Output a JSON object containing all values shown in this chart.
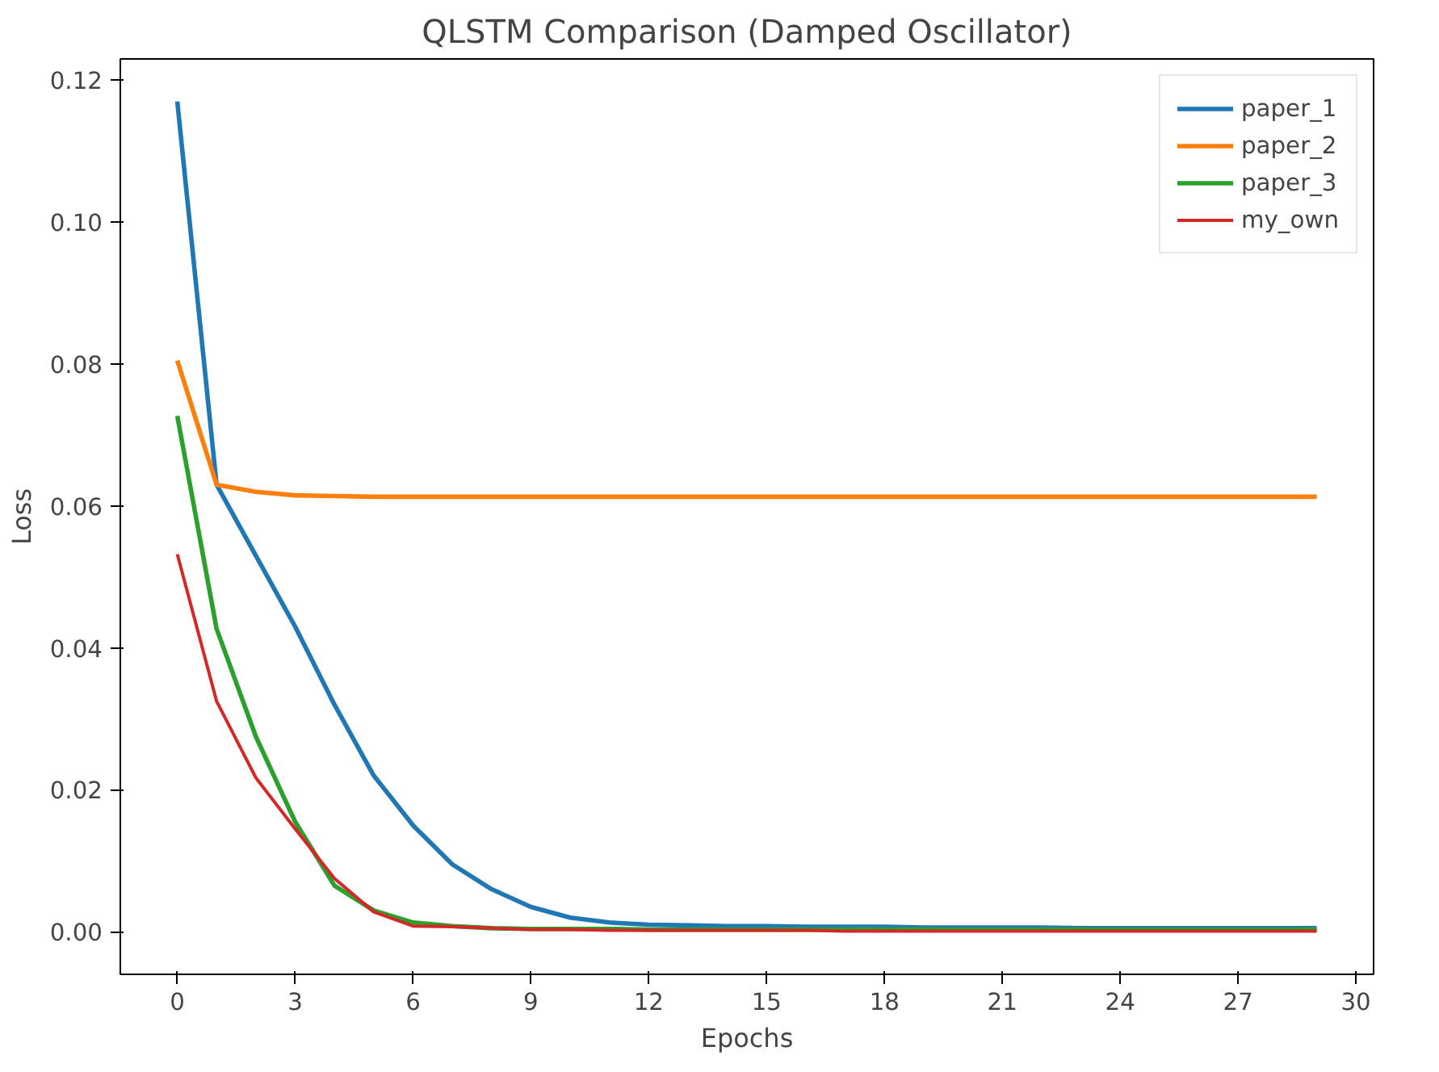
{
  "chart_data": {
    "type": "line",
    "title": "QLSTM Comparison (Damped Oscillator)",
    "xlabel": "Epochs",
    "ylabel": "Loss",
    "x": [
      0,
      1,
      2,
      3,
      4,
      5,
      6,
      7,
      8,
      9,
      10,
      11,
      12,
      13,
      14,
      15,
      16,
      17,
      18,
      19,
      20,
      21,
      22,
      23,
      24,
      25,
      26,
      27,
      28,
      29
    ],
    "series": [
      {
        "name": "paper_1",
        "color": "#1f77b4",
        "values": [
          0.117,
          0.063,
          0.053,
          0.043,
          0.032,
          0.022,
          0.015,
          0.0095,
          0.006,
          0.0035,
          0.002,
          0.0013,
          0.001,
          0.0009,
          0.0008,
          0.0008,
          0.0007,
          0.0007,
          0.0007,
          0.0006,
          0.0006,
          0.0006,
          0.0006,
          0.0005,
          0.0005,
          0.0005,
          0.0005,
          0.0005,
          0.0005,
          0.0005
        ]
      },
      {
        "name": "paper_2",
        "color": "#ff7f0e",
        "values": [
          0.0805,
          0.063,
          0.062,
          0.0615,
          0.0614,
          0.0613,
          0.0613,
          0.0613,
          0.0613,
          0.0613,
          0.0613,
          0.0613,
          0.0613,
          0.0613,
          0.0613,
          0.0613,
          0.0613,
          0.0613,
          0.0613,
          0.0613,
          0.0613,
          0.0613,
          0.0613,
          0.0613,
          0.0613,
          0.0613,
          0.0613,
          0.0613,
          0.0613,
          0.0613
        ]
      },
      {
        "name": "paper_3",
        "color": "#2ca02c",
        "values": [
          0.0727,
          0.0427,
          0.0275,
          0.0155,
          0.0065,
          0.003,
          0.0013,
          0.0008,
          0.0005,
          0.0004,
          0.0004,
          0.0004,
          0.0003,
          0.0003,
          0.0003,
          0.0003,
          0.0003,
          0.0003,
          0.0003,
          0.0003,
          0.0003,
          0.0003,
          0.0003,
          0.0003,
          0.0003,
          0.0003,
          0.0003,
          0.0003,
          0.0003,
          0.0003
        ]
      },
      {
        "name": "my_own",
        "color": "#d62728",
        "values": [
          0.0532,
          0.0325,
          0.0217,
          0.0145,
          0.0075,
          0.0028,
          0.0008,
          0.0007,
          0.0005,
          0.0003,
          0.0003,
          0.0002,
          0.0002,
          0.0002,
          0.0002,
          0.0002,
          0.0002,
          0.0001,
          0.0001,
          0.0001,
          0.0001,
          0.0001,
          0.0001,
          0.0001,
          0.0001,
          0.0001,
          0.0001,
          0.0001,
          0.0001,
          0.0001
        ]
      }
    ],
    "xlim": [
      -1.45,
      30.45
    ],
    "ylim": [
      -0.006,
      0.123
    ],
    "xticks": [
      0,
      3,
      6,
      9,
      12,
      15,
      18,
      21,
      24,
      27,
      30
    ],
    "yticks": [
      {
        "value": 0,
        "label": "0.00"
      },
      {
        "value": 0.02,
        "label": "0.02"
      },
      {
        "value": 0.04,
        "label": "0.04"
      },
      {
        "value": 0.06,
        "label": "0.06"
      },
      {
        "value": 0.08,
        "label": "0.08"
      },
      {
        "value": 0.1,
        "label": "0.10"
      },
      {
        "value": 0.12,
        "label": "0.12"
      }
    ],
    "grid": false,
    "legend": "top right",
    "marker": "none",
    "line_style": "solid"
  }
}
